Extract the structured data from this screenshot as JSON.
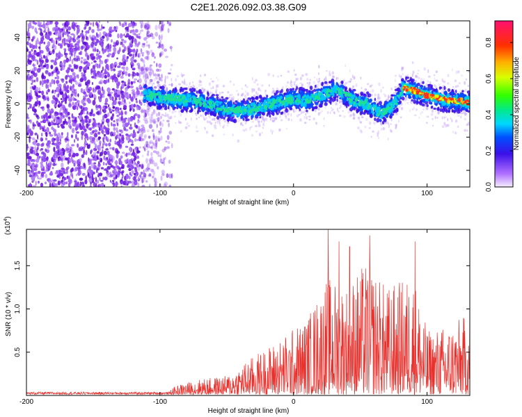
{
  "chart_data": [
    {
      "type": "heatmap",
      "title": "C2E1.2026.092.03.38.G09",
      "xlabel": "Height of straight line (km)",
      "ylabel": "Frequency (Hz)",
      "xlim": [
        -200,
        132
      ],
      "ylim": [
        -50,
        50
      ],
      "xticks": [
        -200,
        -100,
        0,
        100
      ],
      "yticks": [
        -40,
        -20,
        0,
        20,
        40
      ],
      "colorbar": {
        "label": "Normalized spectral amplitude",
        "range": [
          0,
          0.92
        ],
        "ticks": [
          "0.0",
          "0.2",
          "0.4",
          "0.6",
          "0.8"
        ],
        "tick_values": [
          0,
          0.2,
          0.4,
          0.6,
          0.8
        ]
      },
      "trace_centerline": [
        {
          "x": -112,
          "y": 6
        },
        {
          "x": -100,
          "y": 4
        },
        {
          "x": -90,
          "y": 3
        },
        {
          "x": -75,
          "y": 2
        },
        {
          "x": -60,
          "y": -1
        },
        {
          "x": -45,
          "y": -4
        },
        {
          "x": -30,
          "y": -3
        },
        {
          "x": -15,
          "y": 0
        },
        {
          "x": 0,
          "y": 3
        },
        {
          "x": 10,
          "y": 2
        },
        {
          "x": 20,
          "y": 5
        },
        {
          "x": 33,
          "y": 9
        },
        {
          "x": 45,
          "y": 2
        },
        {
          "x": 55,
          "y": 0
        },
        {
          "x": 65,
          "y": -6
        },
        {
          "x": 72,
          "y": -3
        },
        {
          "x": 78,
          "y": 3
        },
        {
          "x": 82,
          "y": 10
        },
        {
          "x": 90,
          "y": 8
        },
        {
          "x": 100,
          "y": 5
        },
        {
          "x": 110,
          "y": 3
        },
        {
          "x": 120,
          "y": 2
        },
        {
          "x": 132,
          "y": 1
        }
      ],
      "noise_region_x": [
        -200,
        -90
      ]
    },
    {
      "type": "line",
      "xlabel": "Height of straight line (km)",
      "ylabel": "SNR (10 * v/v)",
      "multiplier": "(x10",
      "multiplier_exp": "4",
      "multiplier_close": ")",
      "xlim": [
        -200,
        132
      ],
      "ylim": [
        0,
        1.92
      ],
      "xticks": [
        -200,
        -100,
        0,
        100
      ],
      "yticks": [
        "0.5",
        "1.0",
        "1.5"
      ],
      "ytick_values": [
        0.5,
        1.0,
        1.5
      ],
      "line_color": "#e8302c",
      "envelope": [
        {
          "x": -200,
          "y": 0.02
        },
        {
          "x": -120,
          "y": 0.02
        },
        {
          "x": -95,
          "y": 0.05
        },
        {
          "x": -85,
          "y": 0.12
        },
        {
          "x": -70,
          "y": 0.18
        },
        {
          "x": -50,
          "y": 0.22
        },
        {
          "x": -30,
          "y": 0.45
        },
        {
          "x": -10,
          "y": 0.65
        },
        {
          "x": 10,
          "y": 0.9
        },
        {
          "x": 25,
          "y": 1.35
        },
        {
          "x": 40,
          "y": 1.3
        },
        {
          "x": 55,
          "y": 1.55
        },
        {
          "x": 70,
          "y": 1.25
        },
        {
          "x": 90,
          "y": 1.4
        },
        {
          "x": 100,
          "y": 0.75
        },
        {
          "x": 115,
          "y": 0.8
        },
        {
          "x": 132,
          "y": 0.95
        }
      ],
      "peaks": [
        {
          "x": 26,
          "y": 1.92
        },
        {
          "x": 34,
          "y": 1.78
        },
        {
          "x": 42,
          "y": 1.72
        },
        {
          "x": 57,
          "y": 1.85
        },
        {
          "x": 91,
          "y": 1.78
        },
        {
          "x": 132,
          "y": 1.2
        }
      ]
    }
  ]
}
